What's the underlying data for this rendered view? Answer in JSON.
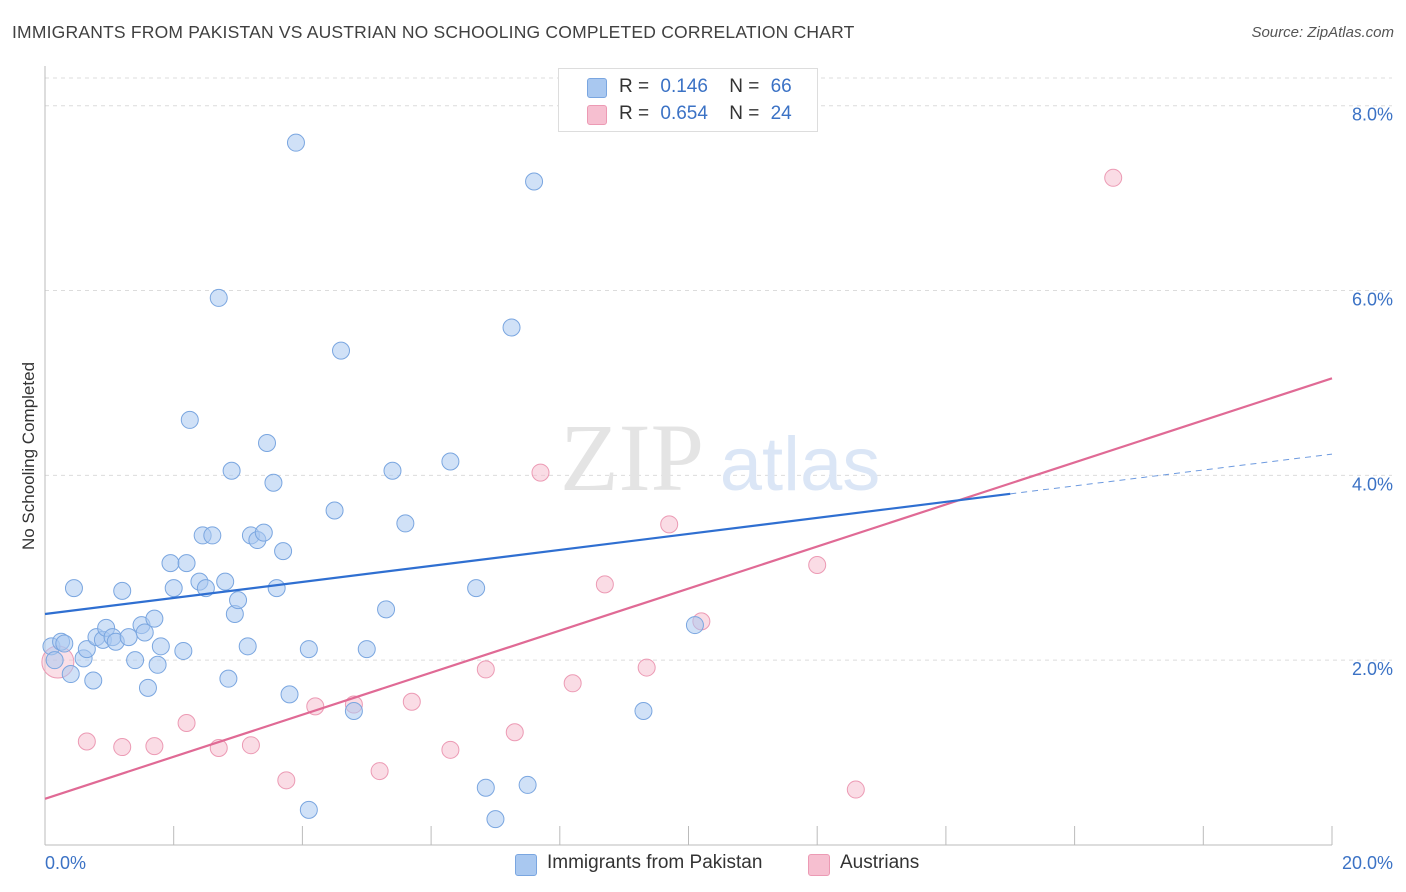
{
  "header": {
    "title": "IMMIGRANTS FROM PAKISTAN VS AUSTRIAN NO SCHOOLING COMPLETED CORRELATION CHART",
    "source": "Source: ZipAtlas.com"
  },
  "watermark": {
    "part1": "ZIP",
    "part2": "atlas"
  },
  "colors": {
    "blue_fill": "#a9c8f0",
    "blue_stroke": "#7aa6e0",
    "blue_line": "#2f6fd1",
    "pink_fill": "#f6bfd0",
    "pink_stroke": "#ec9ab4",
    "pink_line": "#e06a95",
    "tick_label": "#3b72c5",
    "grid": "#dcdcdc"
  },
  "legend_top": {
    "rows": [
      {
        "r_label": "R =",
        "r_value": "0.146",
        "n_label": "N =",
        "n_value": "66"
      },
      {
        "r_label": "R =",
        "r_value": "0.654",
        "n_label": "N =",
        "n_value": "24"
      }
    ]
  },
  "legend_bottom": {
    "items": [
      {
        "label": "Immigrants from Pakistan"
      },
      {
        "label": "Austrians"
      }
    ]
  },
  "chart_data": {
    "type": "scatter",
    "title": "IMMIGRANTS FROM PAKISTAN VS AUSTRIAN NO SCHOOLING COMPLETED CORRELATION CHART",
    "xlabel": "",
    "ylabel": "No Schooling Completed",
    "xlim": [
      0,
      20
    ],
    "ylim": [
      0,
      8.3
    ],
    "x_tick_labels": [
      "0.0%",
      "20.0%"
    ],
    "y_ticks": [
      2,
      4,
      6,
      8
    ],
    "y_tick_labels": [
      "2.0%",
      "4.0%",
      "6.0%",
      "8.0%"
    ],
    "grid": "horizontal dashed",
    "legend_position": "top-center and bottom",
    "series": [
      {
        "name": "Immigrants from Pakistan",
        "color": "blue",
        "R": 0.146,
        "N": 66,
        "trend": {
          "x": [
            0,
            15
          ],
          "y": [
            2.5,
            3.8
          ]
        },
        "trend_dashed": {
          "x": [
            15,
            20
          ],
          "y": [
            3.8,
            4.23
          ]
        },
        "points": [
          [
            0.1,
            2.15
          ],
          [
            0.15,
            2.0
          ],
          [
            0.25,
            2.2
          ],
          [
            0.4,
            1.85
          ],
          [
            0.45,
            2.78
          ],
          [
            0.6,
            2.02
          ],
          [
            0.65,
            2.12
          ],
          [
            0.75,
            1.78
          ],
          [
            0.8,
            2.25
          ],
          [
            0.9,
            2.22
          ],
          [
            0.95,
            2.35
          ],
          [
            1.05,
            2.25
          ],
          [
            1.1,
            2.2
          ],
          [
            1.2,
            2.75
          ],
          [
            1.3,
            2.25
          ],
          [
            1.4,
            2.0
          ],
          [
            1.5,
            2.38
          ],
          [
            1.55,
            2.3
          ],
          [
            1.6,
            1.7
          ],
          [
            1.7,
            2.45
          ],
          [
            1.75,
            1.95
          ],
          [
            1.8,
            2.15
          ],
          [
            1.95,
            3.05
          ],
          [
            2.0,
            2.78
          ],
          [
            2.15,
            2.1
          ],
          [
            2.2,
            3.05
          ],
          [
            2.25,
            4.6
          ],
          [
            2.4,
            2.85
          ],
          [
            2.45,
            3.35
          ],
          [
            2.5,
            2.78
          ],
          [
            2.6,
            3.35
          ],
          [
            2.7,
            5.92
          ],
          [
            2.8,
            2.85
          ],
          [
            2.85,
            1.8
          ],
          [
            2.9,
            4.05
          ],
          [
            2.95,
            2.5
          ],
          [
            3.0,
            2.65
          ],
          [
            3.15,
            2.15
          ],
          [
            3.2,
            3.35
          ],
          [
            3.3,
            3.3
          ],
          [
            3.4,
            3.38
          ],
          [
            3.45,
            4.35
          ],
          [
            3.55,
            3.92
          ],
          [
            3.6,
            2.78
          ],
          [
            3.7,
            3.18
          ],
          [
            3.8,
            1.63
          ],
          [
            3.9,
            7.6
          ],
          [
            4.1,
            2.12
          ],
          [
            4.1,
            0.38
          ],
          [
            4.5,
            3.62
          ],
          [
            4.6,
            5.35
          ],
          [
            4.8,
            1.45
          ],
          [
            5.0,
            2.12
          ],
          [
            5.3,
            2.55
          ],
          [
            5.4,
            4.05
          ],
          [
            5.6,
            3.48
          ],
          [
            6.3,
            4.15
          ],
          [
            6.7,
            2.78
          ],
          [
            6.85,
            0.62
          ],
          [
            7.0,
            0.28
          ],
          [
            7.5,
            0.65
          ],
          [
            7.6,
            7.18
          ],
          [
            7.25,
            5.6
          ],
          [
            9.3,
            1.45
          ],
          [
            10.1,
            2.38
          ],
          [
            0.3,
            2.18
          ]
        ]
      },
      {
        "name": "Austrians",
        "color": "pink",
        "R": 0.654,
        "N": 24,
        "trend": {
          "x": [
            0,
            20
          ],
          "y": [
            0.5,
            5.05
          ]
        },
        "points": [
          [
            0.2,
            1.98
          ],
          [
            0.65,
            1.12
          ],
          [
            1.2,
            1.06
          ],
          [
            1.7,
            1.07
          ],
          [
            2.2,
            1.32
          ],
          [
            2.7,
            1.05
          ],
          [
            3.2,
            1.08
          ],
          [
            3.75,
            0.7
          ],
          [
            4.2,
            1.5
          ],
          [
            4.8,
            1.52
          ],
          [
            5.2,
            0.8
          ],
          [
            5.7,
            1.55
          ],
          [
            6.3,
            1.03
          ],
          [
            6.85,
            1.9
          ],
          [
            7.3,
            1.22
          ],
          [
            7.7,
            4.03
          ],
          [
            8.2,
            1.75
          ],
          [
            8.7,
            2.82
          ],
          [
            9.35,
            1.92
          ],
          [
            9.7,
            3.47
          ],
          [
            10.2,
            2.42
          ],
          [
            12.0,
            3.03
          ],
          [
            12.6,
            0.6
          ],
          [
            16.6,
            7.22
          ]
        ]
      }
    ]
  }
}
